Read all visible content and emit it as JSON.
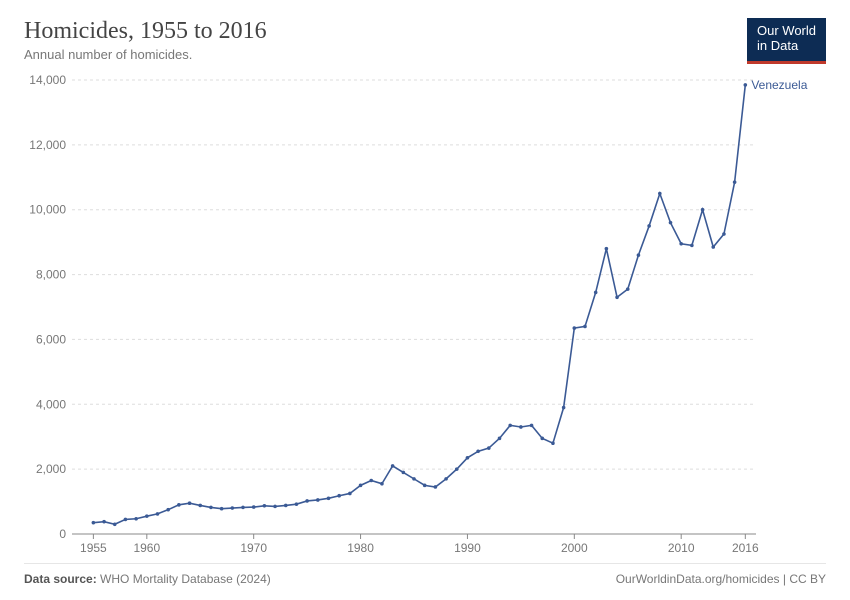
{
  "header": {
    "title": "Homicides, 1955 to 2016",
    "subtitle": "Annual number of homicides."
  },
  "logo": {
    "line1": "Our World",
    "line2": "in Data"
  },
  "chart": {
    "type": "line",
    "xlim": [
      1953,
      2017
    ],
    "ylim": [
      0,
      14000
    ],
    "xticks": [
      1955,
      1960,
      1970,
      1980,
      1990,
      2000,
      2010,
      2016
    ],
    "yticks": [
      0,
      2000,
      4000,
      6000,
      8000,
      10000,
      12000,
      14000
    ],
    "ytick_labels": [
      "0",
      "2,000",
      "4,000",
      "6,000",
      "8,000",
      "10,000",
      "12,000",
      "14,000"
    ],
    "grid_color": "#dddddd",
    "axis_color": "#888888",
    "background_color": "#ffffff",
    "tick_fontsize": 12,
    "series": [
      {
        "name": "Venezuela",
        "label": "Venezuela",
        "color": "#3b5a95",
        "line_width": 1.6,
        "marker_radius": 1.8,
        "data": [
          {
            "x": 1955,
            "y": 350
          },
          {
            "x": 1956,
            "y": 380
          },
          {
            "x": 1957,
            "y": 300
          },
          {
            "x": 1958,
            "y": 450
          },
          {
            "x": 1959,
            "y": 470
          },
          {
            "x": 1960,
            "y": 550
          },
          {
            "x": 1961,
            "y": 620
          },
          {
            "x": 1962,
            "y": 750
          },
          {
            "x": 1963,
            "y": 900
          },
          {
            "x": 1964,
            "y": 950
          },
          {
            "x": 1965,
            "y": 880
          },
          {
            "x": 1966,
            "y": 820
          },
          {
            "x": 1967,
            "y": 780
          },
          {
            "x": 1968,
            "y": 800
          },
          {
            "x": 1969,
            "y": 820
          },
          {
            "x": 1970,
            "y": 830
          },
          {
            "x": 1971,
            "y": 870
          },
          {
            "x": 1972,
            "y": 850
          },
          {
            "x": 1973,
            "y": 880
          },
          {
            "x": 1974,
            "y": 920
          },
          {
            "x": 1975,
            "y": 1020
          },
          {
            "x": 1976,
            "y": 1050
          },
          {
            "x": 1977,
            "y": 1100
          },
          {
            "x": 1978,
            "y": 1180
          },
          {
            "x": 1979,
            "y": 1250
          },
          {
            "x": 1980,
            "y": 1500
          },
          {
            "x": 1981,
            "y": 1650
          },
          {
            "x": 1982,
            "y": 1550
          },
          {
            "x": 1983,
            "y": 2100
          },
          {
            "x": 1984,
            "y": 1900
          },
          {
            "x": 1985,
            "y": 1700
          },
          {
            "x": 1986,
            "y": 1500
          },
          {
            "x": 1987,
            "y": 1450
          },
          {
            "x": 1988,
            "y": 1700
          },
          {
            "x": 1989,
            "y": 2000
          },
          {
            "x": 1990,
            "y": 2350
          },
          {
            "x": 1991,
            "y": 2550
          },
          {
            "x": 1992,
            "y": 2650
          },
          {
            "x": 1993,
            "y": 2950
          },
          {
            "x": 1994,
            "y": 3350
          },
          {
            "x": 1995,
            "y": 3300
          },
          {
            "x": 1996,
            "y": 3350
          },
          {
            "x": 1997,
            "y": 2950
          },
          {
            "x": 1998,
            "y": 2800
          },
          {
            "x": 1999,
            "y": 3900
          },
          {
            "x": 2000,
            "y": 6350
          },
          {
            "x": 2001,
            "y": 6400
          },
          {
            "x": 2002,
            "y": 7450
          },
          {
            "x": 2003,
            "y": 8800
          },
          {
            "x": 2004,
            "y": 7300
          },
          {
            "x": 2005,
            "y": 7550
          },
          {
            "x": 2006,
            "y": 8600
          },
          {
            "x": 2007,
            "y": 9500
          },
          {
            "x": 2008,
            "y": 10500
          },
          {
            "x": 2009,
            "y": 9600
          },
          {
            "x": 2010,
            "y": 8950
          },
          {
            "x": 2011,
            "y": 8900
          },
          {
            "x": 2012,
            "y": 10000
          },
          {
            "x": 2013,
            "y": 8850
          },
          {
            "x": 2014,
            "y": 9250
          },
          {
            "x": 2015,
            "y": 10850
          },
          {
            "x": 2016,
            "y": 13850
          }
        ]
      }
    ]
  },
  "footer": {
    "source_label": "Data source:",
    "source_value": "WHO Mortality Database (2024)",
    "attribution": "OurWorldinData.org/homicides | CC BY"
  }
}
